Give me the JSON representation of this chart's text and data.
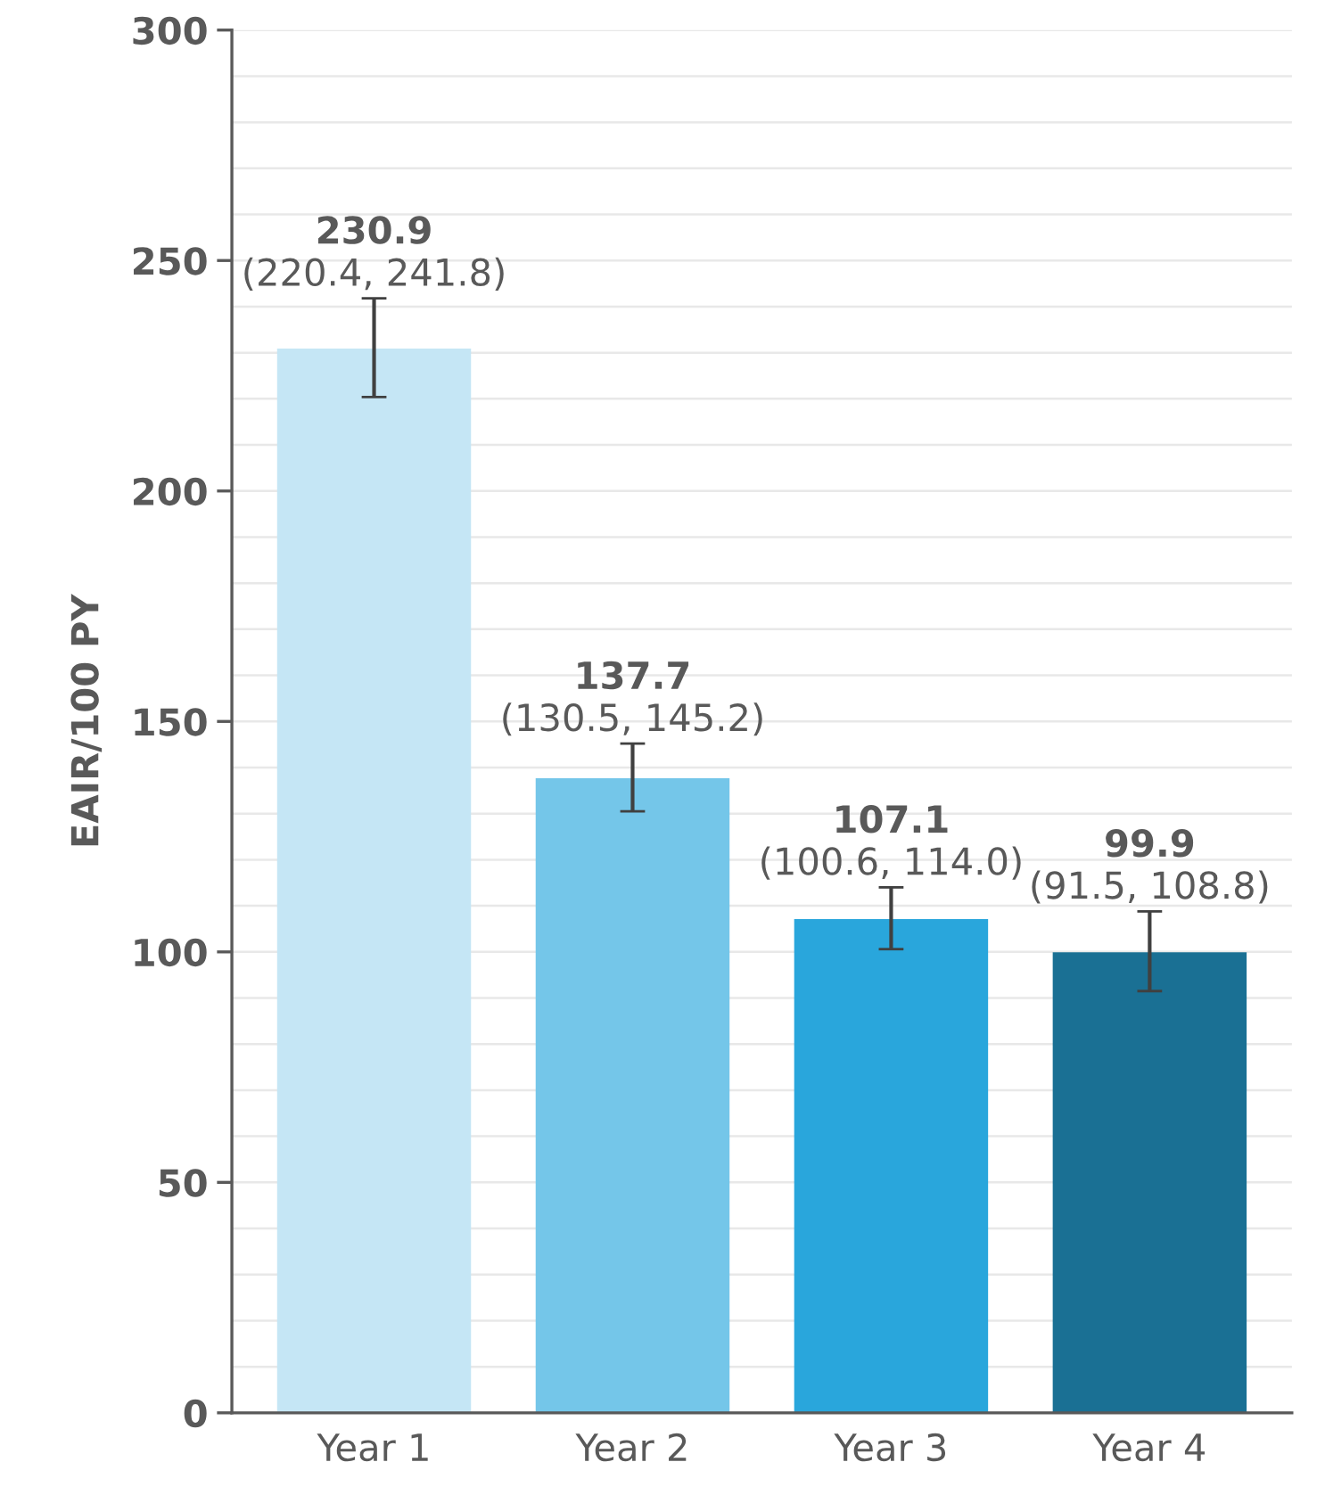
{
  "chart_data": {
    "type": "bar",
    "ylabel": "EAIR/100 PY",
    "categories": [
      "Year 1",
      "Year 2",
      "Year 3",
      "Year 4"
    ],
    "values": [
      230.9,
      137.7,
      107.1,
      99.9
    ],
    "colors": [
      "#c5e6f5",
      "#74c6e9",
      "#29a6dc",
      "#1a7094"
    ],
    "errors": [
      [
        220.4,
        241.8
      ],
      [
        130.5,
        145.2
      ],
      [
        100.6,
        114.0
      ],
      [
        91.5,
        108.8
      ]
    ],
    "data_labels": true,
    "annotations": [
      {
        "text": "(220.4, 241.8)",
        "x": "Year 1",
        "y": 241.8
      },
      {
        "text": "(130.5, 145.2)",
        "x": "Year 2",
        "y": 145.2
      },
      {
        "text": "(100.6, 114.0)",
        "x": "Year 3",
        "y": 114.0
      },
      {
        "text": "(91.5, 108.8)",
        "x": "Year 4",
        "y": 108.8
      }
    ],
    "ylim": [
      0,
      300
    ],
    "yticks": [
      0,
      {
        "value": 10,
        "label": null
      },
      {
        "value": 20,
        "label": null
      },
      {
        "value": 30,
        "label": null
      },
      {
        "value": 40,
        "label": null
      },
      50,
      {
        "value": 60,
        "label": null
      },
      {
        "value": 70,
        "label": null
      },
      {
        "value": 80,
        "label": null
      },
      {
        "value": 90,
        "label": null
      },
      100,
      {
        "value": 110,
        "label": null
      },
      {
        "value": 120,
        "label": null
      },
      {
        "value": 130,
        "label": null
      },
      {
        "value": 140,
        "label": null
      },
      150,
      {
        "value": 160,
        "label": null
      },
      {
        "value": 170,
        "label": null
      },
      {
        "value": 180,
        "label": null
      },
      {
        "value": 190,
        "label": null
      },
      200,
      {
        "value": 210,
        "label": null
      },
      {
        "value": 220,
        "label": null
      },
      {
        "value": 230,
        "label": null
      },
      {
        "value": 240,
        "label": null
      },
      250,
      {
        "value": 260,
        "label": null
      },
      {
        "value": 270,
        "label": null
      },
      {
        "value": 280,
        "label": null
      },
      {
        "value": 290,
        "label": null
      },
      300
    ],
    "grid": "y"
  }
}
